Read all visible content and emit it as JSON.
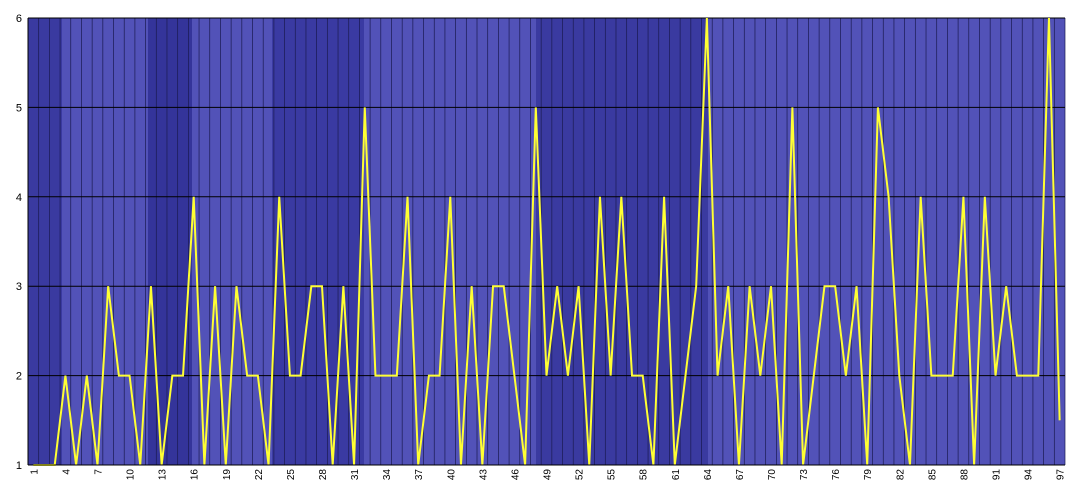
{
  "chart_data": {
    "type": "line",
    "categories": [
      "1",
      null,
      null,
      "4",
      null,
      null,
      "7",
      null,
      null,
      "10",
      null,
      null,
      "13",
      null,
      null,
      "16",
      null,
      null,
      "19",
      null,
      null,
      "22",
      null,
      null,
      "25",
      null,
      null,
      "28",
      null,
      null,
      "31",
      null,
      null,
      "34",
      null,
      null,
      "37",
      null,
      null,
      "40",
      null,
      null,
      "43",
      null,
      null,
      "46",
      null,
      null,
      "49",
      null,
      null,
      "52",
      null,
      null,
      "55",
      null,
      null,
      "58",
      null,
      null,
      "61",
      null,
      null,
      "64",
      null,
      null,
      "67",
      null,
      null,
      "70",
      null,
      null,
      "73",
      null,
      null,
      "76",
      null,
      null,
      "79",
      null,
      null,
      "82",
      null,
      null,
      "85",
      null,
      null,
      "88",
      null,
      null,
      "91",
      null,
      null,
      "94",
      null,
      null,
      "97"
    ],
    "series": [
      {
        "color": "#ffff33",
        "values": [
          1,
          1,
          1,
          2,
          1,
          2,
          1,
          3,
          2,
          2,
          1,
          3,
          1,
          2,
          2,
          4,
          1,
          3,
          1,
          3,
          2,
          2,
          1,
          4,
          2,
          2,
          3,
          3,
          1,
          3,
          1,
          5,
          2,
          2,
          2,
          4,
          1,
          2,
          2,
          4,
          1,
          3,
          1,
          3,
          3,
          2,
          1,
          5,
          2,
          3,
          2,
          3,
          1,
          4,
          2,
          4,
          2,
          2,
          1,
          4,
          1,
          2,
          3,
          6,
          2,
          3,
          1,
          3,
          2,
          3,
          1,
          5,
          1,
          2,
          3,
          3,
          2,
          3,
          1,
          5,
          4,
          2,
          1,
          4,
          2,
          2,
          2,
          4,
          1,
          4,
          2,
          3,
          2,
          2,
          2,
          6,
          1.5
        ]
      }
    ],
    "ylim": [
      1,
      6
    ],
    "yticks": [
      1,
      2,
      3,
      4,
      5,
      6
    ],
    "grid": true
  }
}
